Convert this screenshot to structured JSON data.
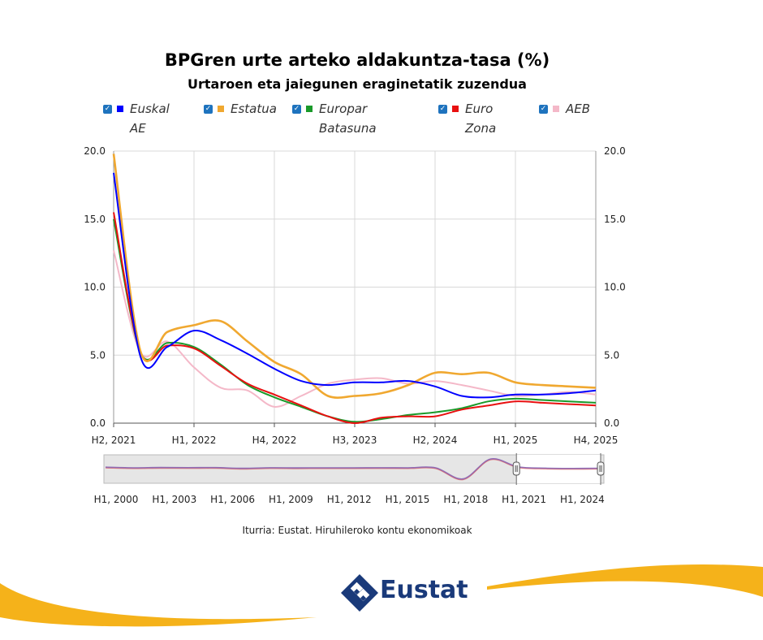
{
  "chart_data": {
    "type": "line",
    "title": "BPGren urte arteko aldakuntza-tasa (%)",
    "subtitle": "Urtaroen eta jaiegunen eraginetatik zuzendua",
    "x": [
      "H2, 2021",
      "H3, 2021",
      "H4, 2021",
      "H1, 2022",
      "H2, 2022",
      "H3, 2022",
      "H4, 2022",
      "H1, 2023",
      "H2, 2023",
      "H3, 2023",
      "H4, 2023",
      "H1, 2024",
      "H2, 2024",
      "H3, 2024",
      "H4, 2024",
      "H1, 2025",
      "H2, 2025",
      "H3, 2025",
      "H4, 2025"
    ],
    "xticks": [
      "H2, 2021",
      "H1, 2022",
      "H4, 2022",
      "H3, 2023",
      "H2, 2024",
      "H1, 2025",
      "H4, 2025"
    ],
    "ylim": [
      0,
      20
    ],
    "yticks": [
      "0.0",
      "5.0",
      "10.0",
      "15.0",
      "20.0"
    ],
    "grid": true,
    "legend_position": "top",
    "series": [
      {
        "name": "Euskal AE",
        "color": "#0000ff",
        "values": [
          18.4,
          4.9,
          5.6,
          6.8,
          6.1,
          5.1,
          4.0,
          3.1,
          2.8,
          3.0,
          3.0,
          3.1,
          2.7,
          2.0,
          1.9,
          2.1,
          2.1,
          2.2,
          2.4
        ]
      },
      {
        "name": "Estatua",
        "color": "#f0a830",
        "values": [
          19.8,
          5.3,
          6.7,
          7.2,
          7.5,
          6.0,
          4.5,
          3.6,
          2.0,
          2.0,
          2.2,
          2.8,
          3.7,
          3.6,
          3.7,
          3.0,
          2.8,
          2.7,
          2.6
        ]
      },
      {
        "name": "Europar Batasuna",
        "color": "#1a9a2a",
        "values": [
          15.0,
          5.2,
          5.9,
          5.6,
          4.3,
          2.8,
          1.9,
          1.2,
          0.5,
          0.1,
          0.3,
          0.6,
          0.8,
          1.1,
          1.6,
          1.8,
          1.7,
          1.6,
          1.5
        ]
      },
      {
        "name": "Euro Zona",
        "color": "#e81010",
        "values": [
          15.5,
          5.2,
          5.7,
          5.5,
          4.2,
          2.9,
          2.1,
          1.3,
          0.5,
          0.0,
          0.4,
          0.5,
          0.5,
          1.0,
          1.3,
          1.6,
          1.5,
          1.4,
          1.3
        ]
      },
      {
        "name": "AEB",
        "color": "#f4b8c8",
        "values": [
          12.7,
          5.2,
          6.0,
          4.1,
          2.6,
          2.4,
          1.2,
          2.0,
          2.9,
          3.2,
          3.3,
          2.9,
          3.1,
          2.8,
          2.4,
          2.0,
          2.1,
          2.3,
          2.1
        ]
      }
    ],
    "navigator": {
      "xticks": [
        "H1, 2000",
        "H1, 2003",
        "H1, 2006",
        "H1, 2009",
        "H1, 2012",
        "H1, 2015",
        "H1, 2018",
        "H1, 2021",
        "H1, 2024"
      ],
      "series_values": [
        4.5,
        3.2,
        3.8,
        3.5,
        3.6,
        2.2,
        3.4,
        3.0,
        3.2,
        3.1,
        3.3,
        3.2,
        3.2,
        -18.0,
        20.0,
        5.0,
        2.5,
        2.0,
        2.4
      ]
    }
  },
  "legend": [
    {
      "label": "Euskal\nAE",
      "swatch": "#0000ff"
    },
    {
      "label": "Estatua",
      "swatch": "#f0a830"
    },
    {
      "label": "Europar\nBatasuna",
      "swatch": "#1a9a2a"
    },
    {
      "label": "Euro\nZona",
      "swatch": "#e81010"
    },
    {
      "label": "AEB",
      "swatch": "#f4b8c8"
    }
  ],
  "source": "Iturria: Eustat. Hiruhileroko kontu ekonomikoak",
  "logo": {
    "text": "Eustat",
    "color": "#1a3a7a",
    "accent": "#f5b21a"
  }
}
